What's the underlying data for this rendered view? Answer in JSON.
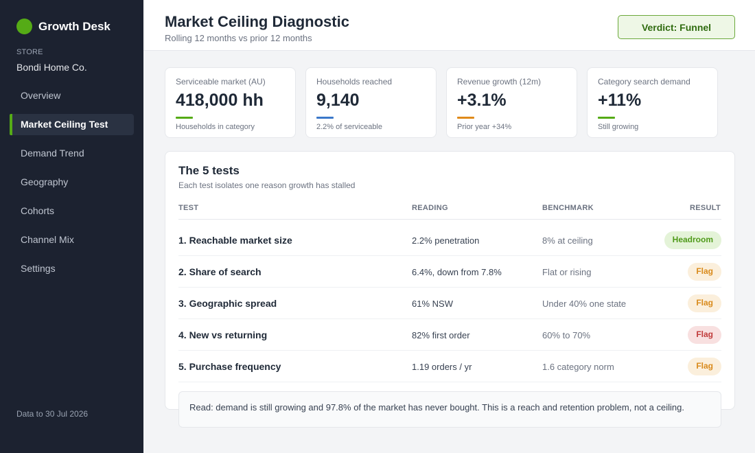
{
  "sidebar": {
    "brand": "Growth Desk",
    "store_label": "STORE",
    "store_name": "Bondi Home Co.",
    "nav": [
      {
        "label": "Overview",
        "active": false
      },
      {
        "label": "Market Ceiling Test",
        "active": true
      },
      {
        "label": "Demand Trend",
        "active": false
      },
      {
        "label": "Geography",
        "active": false
      },
      {
        "label": "Cohorts",
        "active": false
      },
      {
        "label": "Channel Mix",
        "active": false
      },
      {
        "label": "Settings",
        "active": false
      }
    ],
    "data_to": "Data to 30 Jul 2026"
  },
  "header": {
    "title": "Market Ceiling Diagnostic",
    "subtitle": "Rolling 12 months vs prior 12 months",
    "verdict": "Verdict: Funnel"
  },
  "kpis": [
    {
      "label": "Serviceable market (AU)",
      "value": "418,000 hh",
      "sub": "Households in category",
      "accent": "#55ab16"
    },
    {
      "label": "Households reached",
      "value": "9,140",
      "sub": "2.2% of serviceable",
      "accent": "#3b78c9"
    },
    {
      "label": "Revenue growth (12m)",
      "value": "+3.1%",
      "sub": "Prior year +34%",
      "accent": "#e08a1a"
    },
    {
      "label": "Category search demand",
      "value": "+11%",
      "sub": "Still growing",
      "accent": "#55ab16"
    }
  ],
  "tests": {
    "title": "The 5 tests",
    "subtitle": "Each test isolates one reason growth has stalled",
    "columns": {
      "test": "TEST",
      "reading": "READING",
      "benchmark": "BENCHMARK",
      "result": "RESULT"
    },
    "rows": [
      {
        "test": "1. Reachable market size",
        "reading": "2.2% penetration",
        "benchmark": "8% at ceiling",
        "result": "Headroom",
        "status": "headroom"
      },
      {
        "test": "2. Share of search",
        "reading": "6.4%, down from 7.8%",
        "benchmark": "Flat or rising",
        "result": "Flag",
        "status": "flag-amber"
      },
      {
        "test": "3. Geographic spread",
        "reading": "61% NSW",
        "benchmark": "Under 40% one state",
        "result": "Flag",
        "status": "flag-amber"
      },
      {
        "test": "4. New vs returning",
        "reading": "82% first order",
        "benchmark": "60% to 70%",
        "result": "Flag",
        "status": "flag-red"
      },
      {
        "test": "5. Purchase frequency",
        "reading": "1.19 orders / yr",
        "benchmark": "1.6 category norm",
        "result": "Flag",
        "status": "flag-amber"
      }
    ],
    "read": "Read: demand is still growing and 97.8% of the market has never bought. This is a reach and retention problem, not a ceiling."
  },
  "colors": {
    "sidebar_bg": "#1c2230",
    "accent_green": "#55ab16",
    "accent_blue": "#3b78c9",
    "accent_amber": "#e08a1a",
    "flag_red": "#c03a3a"
  }
}
